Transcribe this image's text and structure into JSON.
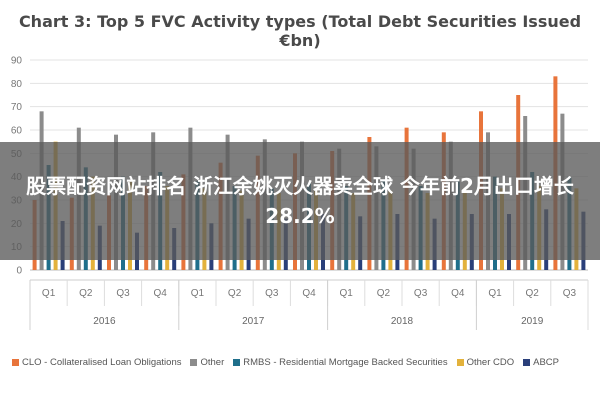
{
  "overlay": {
    "headline": "股票配资网站排名 浙江余姚灭火器卖全球 今年前2月出口增长28.2%"
  },
  "chart_data": {
    "type": "bar",
    "title": "Chart 3: Top 5 FVC Activity types (Total Debt Securities Issued €bn)",
    "xlabel": "",
    "ylabel": "",
    "ylim": [
      0,
      90
    ],
    "yticks": [
      0,
      10,
      20,
      30,
      40,
      50,
      60,
      70,
      80,
      90
    ],
    "grid": true,
    "legend_position": "bottom",
    "categories": [
      "Q1",
      "Q2",
      "Q3",
      "Q4",
      "Q1",
      "Q2",
      "Q3",
      "Q4",
      "Q1",
      "Q2",
      "Q3",
      "Q4",
      "Q1",
      "Q2",
      "Q3"
    ],
    "groups": [
      {
        "label": "2016",
        "count": 4
      },
      {
        "label": "2017",
        "count": 4
      },
      {
        "label": "2018",
        "count": 4
      },
      {
        "label": "2019",
        "count": 3
      }
    ],
    "series": [
      {
        "name": "CLO - Collateralised Loan Obligations",
        "color": "#e8743b",
        "values": [
          30,
          31,
          32,
          36,
          41,
          46,
          49,
          50,
          51,
          57,
          61,
          59,
          68,
          75,
          83
        ]
      },
      {
        "name": "Other",
        "color": "#8c8c8c",
        "values": [
          68,
          61,
          58,
          59,
          61,
          58,
          56,
          55,
          52,
          53,
          52,
          55,
          59,
          66,
          67
        ]
      },
      {
        "name": "RMBS - Residential Mortgage Backed Securities",
        "color": "#1f6f8b",
        "values": [
          45,
          44,
          40,
          42,
          38,
          36,
          35,
          37,
          36,
          38,
          36,
          38,
          40,
          42,
          40
        ]
      },
      {
        "name": "Other CDO",
        "color": "#e3b23c",
        "values": [
          55,
          40,
          38,
          36,
          35,
          34,
          33,
          34,
          33,
          34,
          33,
          35,
          35,
          36,
          35
        ]
      },
      {
        "name": "ABCP",
        "color": "#2a3f7a",
        "values": [
          21,
          19,
          16,
          18,
          20,
          22,
          22,
          24,
          23,
          24,
          22,
          24,
          24,
          26,
          25
        ]
      }
    ]
  }
}
